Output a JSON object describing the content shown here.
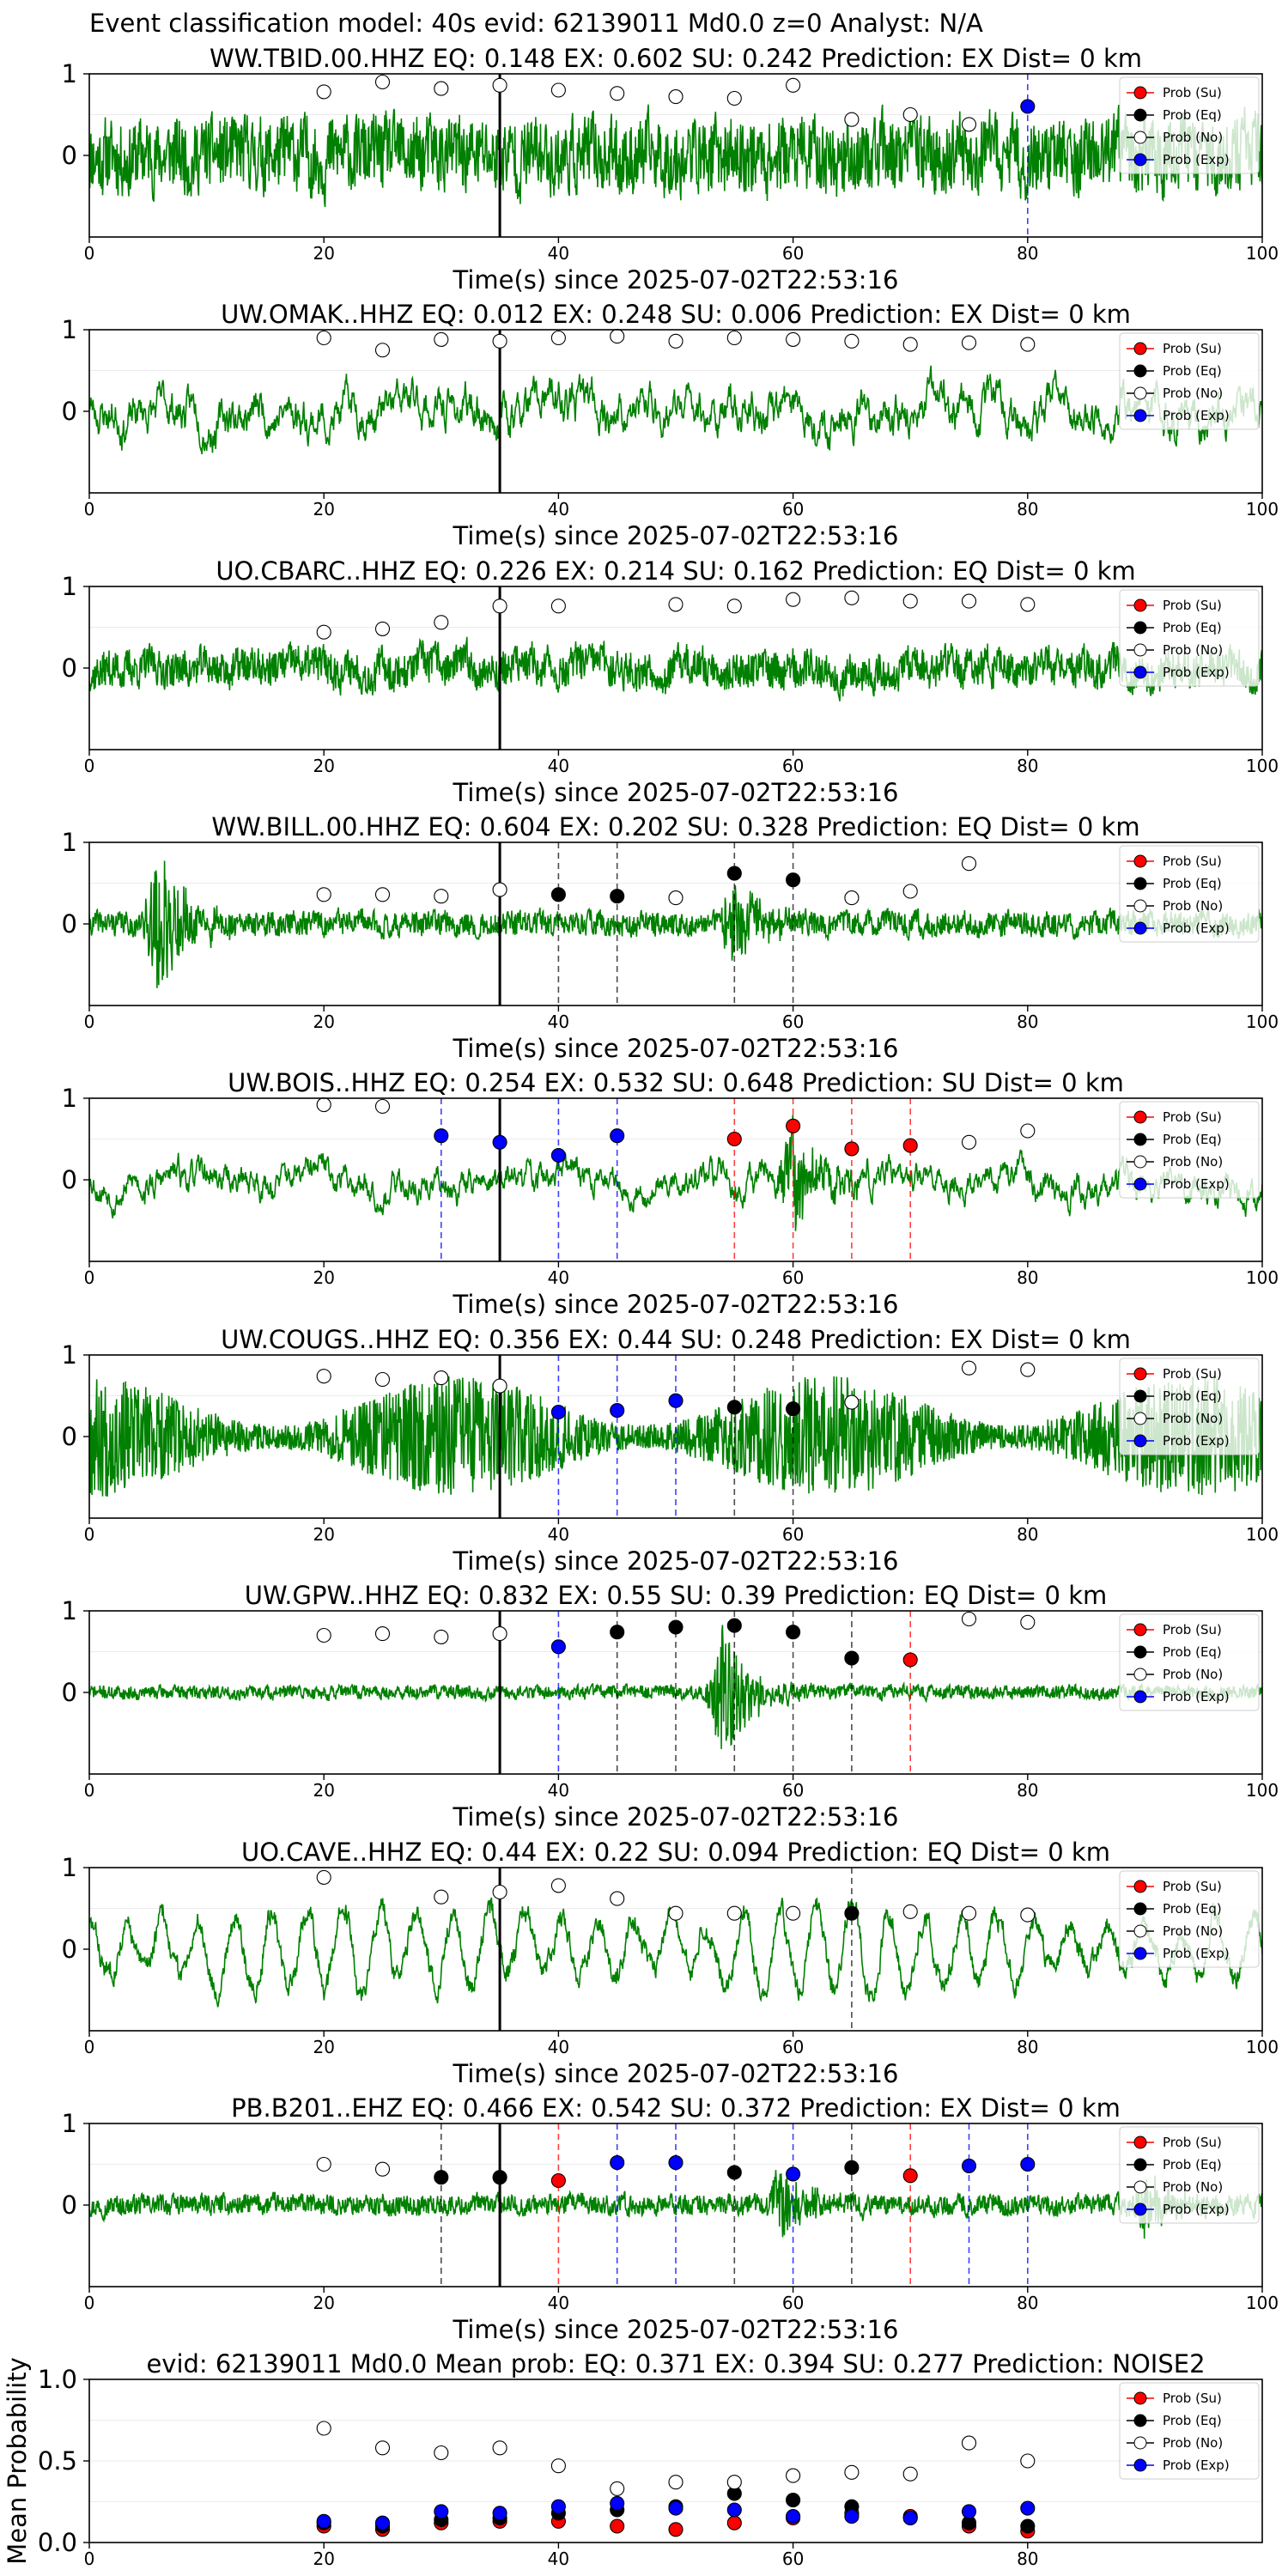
{
  "figure": {
    "title": "Event classification model: 40s evid: 62139011 Md0.0 z=0 Analyst: N/A"
  },
  "colors": {
    "waveform": "#008000",
    "su": "#ff0000",
    "eq": "#000000",
    "no": "#ffffff",
    "exp": "#0000ff",
    "axis": "#000000",
    "pick_line": "#000000"
  },
  "legend_labels": [
    "Prob (Su)",
    "Prob (Eq)",
    "Prob (No)",
    "Prob (Exp)"
  ],
  "chart_data": [
    {
      "type": "scatter",
      "station": "WW.TBID.00.HHZ",
      "title": "WW.TBID.00.HHZ   EQ: 0.148  EX: 0.602  SU: 0.242   Prediction: EX    Dist= 0 km",
      "xlabel": "Time(s) since 2025-07-02T22:53:16",
      "xlim": [
        0,
        100
      ],
      "ylim": [
        -1,
        1
      ],
      "xticks": [
        0,
        20,
        40,
        60,
        80,
        100
      ],
      "yticks": [
        0,
        1
      ],
      "pick_time": 35,
      "waveform": {
        "style": "noisy",
        "amp": 0.55,
        "seed": 11
      },
      "windows": [
        20,
        25,
        30,
        35,
        40,
        45,
        50,
        55,
        60,
        65,
        70,
        75,
        80
      ],
      "series": [
        {
          "name": "Prob (Su)",
          "x": [],
          "y": []
        },
        {
          "name": "Prob (Eq)",
          "x": [],
          "y": []
        },
        {
          "name": "Prob (No)",
          "x": [
            20,
            25,
            30,
            35,
            40,
            45,
            50,
            55,
            60,
            65,
            70,
            75
          ],
          "y": [
            0.78,
            0.9,
            0.82,
            0.86,
            0.8,
            0.76,
            0.72,
            0.7,
            0.86,
            0.44,
            0.5,
            0.38
          ]
        },
        {
          "name": "Prob (Exp)",
          "x": [
            80
          ],
          "y": [
            0.6
          ]
        }
      ],
      "dashed_lines": [
        {
          "x": 80,
          "class": "exp"
        }
      ],
      "legend": "top-right"
    },
    {
      "type": "scatter",
      "station": "UW.OMAK..HHZ",
      "title": "UW.OMAK..HHZ   EQ: 0.012  EX: 0.248  SU: 0.006   Prediction: EX    Dist= 0 km",
      "xlabel": "Time(s) since 2025-07-02T22:53:16",
      "xlim": [
        0,
        100
      ],
      "ylim": [
        -1,
        1
      ],
      "xticks": [
        0,
        20,
        40,
        60,
        80,
        100
      ],
      "yticks": [
        0,
        1
      ],
      "pick_time": 35,
      "waveform": {
        "style": "wavy",
        "amp": 0.6,
        "seed": 23
      },
      "series": [
        {
          "name": "Prob (Su)",
          "x": [],
          "y": []
        },
        {
          "name": "Prob (Eq)",
          "x": [],
          "y": []
        },
        {
          "name": "Prob (No)",
          "x": [
            20,
            25,
            30,
            35,
            40,
            45,
            50,
            55,
            60,
            65,
            70,
            75,
            80
          ],
          "y": [
            0.9,
            0.75,
            0.88,
            0.86,
            0.9,
            0.92,
            0.86,
            0.9,
            0.88,
            0.86,
            0.82,
            0.84,
            0.82
          ]
        },
        {
          "name": "Prob (Exp)",
          "x": [],
          "y": []
        }
      ],
      "dashed_lines": [],
      "legend": "top-right"
    },
    {
      "type": "scatter",
      "station": "UO.CBARC..HHZ",
      "title": "UO.CBARC..HHZ   EQ: 0.226  EX: 0.214  SU: 0.162   Prediction: EQ    Dist= 0 km",
      "xlabel": "Time(s) since 2025-07-02T22:53:16",
      "xlim": [
        0,
        100
      ],
      "ylim": [
        -1,
        1
      ],
      "xticks": [
        0,
        20,
        40,
        60,
        80,
        100
      ],
      "yticks": [
        0,
        1
      ],
      "pick_time": 35,
      "waveform": {
        "style": "moderate",
        "amp": 0.35,
        "seed": 37
      },
      "series": [
        {
          "name": "Prob (Su)",
          "x": [],
          "y": []
        },
        {
          "name": "Prob (Eq)",
          "x": [],
          "y": []
        },
        {
          "name": "Prob (No)",
          "x": [
            20,
            25,
            30,
            35,
            40,
            50,
            55,
            60,
            65,
            70,
            75,
            80
          ],
          "y": [
            0.44,
            0.48,
            0.56,
            0.76,
            0.76,
            0.78,
            0.76,
            0.84,
            0.86,
            0.82,
            0.82,
            0.78
          ]
        },
        {
          "name": "Prob (Exp)",
          "x": [],
          "y": []
        }
      ],
      "dashed_lines": [],
      "legend": "top-right"
    },
    {
      "type": "scatter",
      "station": "WW.BILL.00.HHZ",
      "title": "WW.BILL.00.HHZ   EQ: 0.604  EX: 0.202  SU: 0.328   Prediction: EQ    Dist= 0 km",
      "xlabel": "Time(s) since 2025-07-02T22:53:16",
      "xlim": [
        0,
        100
      ],
      "ylim": [
        -1,
        1
      ],
      "xticks": [
        0,
        20,
        40,
        60,
        80,
        100
      ],
      "yticks": [
        0,
        1
      ],
      "pick_time": 35,
      "waveform": {
        "style": "quiet-burst",
        "amp": 0.18,
        "seed": 41,
        "bursts": [
          [
            6,
            0.9
          ],
          [
            55,
            0.5
          ]
        ]
      },
      "series": [
        {
          "name": "Prob (Su)",
          "x": [],
          "y": []
        },
        {
          "name": "Prob (Eq)",
          "x": [
            40,
            45,
            55,
            60
          ],
          "y": [
            0.36,
            0.34,
            0.62,
            0.54
          ]
        },
        {
          "name": "Prob (No)",
          "x": [
            20,
            25,
            30,
            35,
            50,
            65,
            70,
            75
          ],
          "y": [
            0.36,
            0.36,
            0.34,
            0.42,
            0.32,
            0.32,
            0.4,
            0.74
          ]
        },
        {
          "name": "Prob (Exp)",
          "x": [],
          "y": []
        }
      ],
      "dashed_lines": [
        {
          "x": 40,
          "class": "eq"
        },
        {
          "x": 45,
          "class": "eq"
        },
        {
          "x": 55,
          "class": "eq"
        },
        {
          "x": 60,
          "class": "eq"
        }
      ],
      "legend": "top-right"
    },
    {
      "type": "scatter",
      "station": "UW.BOIS..HHZ",
      "title": "UW.BOIS..HHZ   EQ: 0.254  EX: 0.532  SU: 0.648   Prediction: SU    Dist= 0 km",
      "xlabel": "Time(s) since 2025-07-02T22:53:16",
      "xlim": [
        0,
        100
      ],
      "ylim": [
        -1,
        1
      ],
      "xticks": [
        0,
        20,
        40,
        60,
        80,
        100
      ],
      "yticks": [
        0,
        1
      ],
      "pick_time": 35,
      "waveform": {
        "style": "wavy-burst",
        "amp": 0.45,
        "seed": 53,
        "bursts": [
          [
            60,
            0.7
          ]
        ]
      },
      "series": [
        {
          "name": "Prob (Su)",
          "x": [
            55,
            60,
            65,
            70
          ],
          "y": [
            0.5,
            0.66,
            0.38,
            0.42
          ]
        },
        {
          "name": "Prob (Eq)",
          "x": [],
          "y": []
        },
        {
          "name": "Prob (No)",
          "x": [
            20,
            25,
            75,
            80
          ],
          "y": [
            0.92,
            0.9,
            0.46,
            0.6
          ]
        },
        {
          "name": "Prob (Exp)",
          "x": [
            30,
            35,
            40,
            45
          ],
          "y": [
            0.54,
            0.46,
            0.3,
            0.54
          ]
        }
      ],
      "dashed_lines": [
        {
          "x": 30,
          "class": "exp"
        },
        {
          "x": 40,
          "class": "exp"
        },
        {
          "x": 45,
          "class": "exp"
        },
        {
          "x": 55,
          "class": "su"
        },
        {
          "x": 60,
          "class": "su"
        },
        {
          "x": 65,
          "class": "su"
        },
        {
          "x": 70,
          "class": "su"
        }
      ],
      "legend": "top-right"
    },
    {
      "type": "scatter",
      "station": "UW.COUGS..HHZ",
      "title": "UW.COUGS..HHZ   EQ: 0.356  EX: 0.44  SU: 0.248   Prediction: EX    Dist= 0 km",
      "xlabel": "Time(s) since 2025-07-02T22:53:16",
      "xlim": [
        0,
        100
      ],
      "ylim": [
        -1,
        1
      ],
      "xticks": [
        0,
        20,
        40,
        60,
        80,
        100
      ],
      "yticks": [
        0,
        1
      ],
      "pick_time": 35,
      "waveform": {
        "style": "dense",
        "amp": 0.75,
        "seed": 67
      },
      "series": [
        {
          "name": "Prob (Su)",
          "x": [],
          "y": []
        },
        {
          "name": "Prob (Eq)",
          "x": [
            55,
            60
          ],
          "y": [
            0.36,
            0.34
          ]
        },
        {
          "name": "Prob (No)",
          "x": [
            20,
            25,
            30,
            35,
            65,
            75,
            80
          ],
          "y": [
            0.74,
            0.7,
            0.72,
            0.62,
            0.42,
            0.84,
            0.82
          ]
        },
        {
          "name": "Prob (Exp)",
          "x": [
            40,
            45,
            50
          ],
          "y": [
            0.3,
            0.32,
            0.44
          ]
        }
      ],
      "dashed_lines": [
        {
          "x": 40,
          "class": "exp"
        },
        {
          "x": 45,
          "class": "exp"
        },
        {
          "x": 50,
          "class": "exp"
        },
        {
          "x": 55,
          "class": "eq"
        },
        {
          "x": 60,
          "class": "eq"
        }
      ],
      "legend": "top-right"
    },
    {
      "type": "scatter",
      "station": "UW.GPW..HHZ",
      "title": "UW.GPW..HHZ   EQ: 0.832  EX: 0.55  SU: 0.39   Prediction: EQ    Dist= 0 km",
      "xlabel": "Time(s) since 2025-07-02T22:53:16",
      "xlim": [
        0,
        100
      ],
      "ylim": [
        -1,
        1
      ],
      "xticks": [
        0,
        20,
        40,
        60,
        80,
        100
      ],
      "yticks": [
        0,
        1
      ],
      "pick_time": 35,
      "waveform": {
        "style": "quiet-burst",
        "amp": 0.1,
        "seed": 71,
        "bursts": [
          [
            54,
            0.9
          ]
        ]
      },
      "series": [
        {
          "name": "Prob (Su)",
          "x": [
            70
          ],
          "y": [
            0.4
          ]
        },
        {
          "name": "Prob (Eq)",
          "x": [
            45,
            50,
            55,
            60,
            65
          ],
          "y": [
            0.74,
            0.8,
            0.82,
            0.74,
            0.42
          ]
        },
        {
          "name": "Prob (No)",
          "x": [
            20,
            25,
            30,
            35,
            75,
            80
          ],
          "y": [
            0.7,
            0.72,
            0.68,
            0.72,
            0.9,
            0.86
          ]
        },
        {
          "name": "Prob (Exp)",
          "x": [
            40
          ],
          "y": [
            0.56
          ]
        }
      ],
      "dashed_lines": [
        {
          "x": 40,
          "class": "exp"
        },
        {
          "x": 45,
          "class": "eq"
        },
        {
          "x": 50,
          "class": "eq"
        },
        {
          "x": 55,
          "class": "eq"
        },
        {
          "x": 60,
          "class": "eq"
        },
        {
          "x": 65,
          "class": "eq"
        },
        {
          "x": 70,
          "class": "su"
        }
      ],
      "legend": "top-right"
    },
    {
      "type": "scatter",
      "station": "UO.CAVE..HHZ",
      "title": "UO.CAVE..HHZ   EQ: 0.44  EX: 0.22  SU: 0.094   Prediction: EQ    Dist= 0 km",
      "xlabel": "Time(s) since 2025-07-02T22:53:16",
      "xlim": [
        0,
        100
      ],
      "ylim": [
        -1,
        1
      ],
      "xticks": [
        0,
        20,
        40,
        60,
        80,
        100
      ],
      "yticks": [
        0,
        1
      ],
      "pick_time": 35,
      "waveform": {
        "style": "oscillation",
        "amp": 0.8,
        "seed": 83
      },
      "series": [
        {
          "name": "Prob (Su)",
          "x": [],
          "y": []
        },
        {
          "name": "Prob (Eq)",
          "x": [
            65
          ],
          "y": [
            0.44
          ]
        },
        {
          "name": "Prob (No)",
          "x": [
            20,
            30,
            35,
            40,
            45,
            50,
            55,
            60,
            70,
            75,
            80
          ],
          "y": [
            0.88,
            0.64,
            0.7,
            0.78,
            0.62,
            0.44,
            0.44,
            0.44,
            0.46,
            0.44,
            0.42
          ]
        },
        {
          "name": "Prob (Exp)",
          "x": [],
          "y": []
        }
      ],
      "dashed_lines": [
        {
          "x": 65,
          "class": "eq"
        }
      ],
      "legend": "top-right"
    },
    {
      "type": "scatter",
      "station": "PB.B201..EHZ",
      "title": "PB.B201..EHZ   EQ: 0.466  EX: 0.542  SU: 0.372   Prediction: EX    Dist= 0 km",
      "xlabel": "Time(s) since 2025-07-02T22:53:16",
      "xlim": [
        0,
        100
      ],
      "ylim": [
        -1,
        1
      ],
      "xticks": [
        0,
        20,
        40,
        60,
        80,
        100
      ],
      "yticks": [
        0,
        1
      ],
      "pick_time": 35,
      "waveform": {
        "style": "quiet-burst",
        "amp": 0.15,
        "seed": 97,
        "bursts": [
          [
            59,
            0.55
          ],
          [
            90,
            0.35
          ]
        ]
      },
      "series": [
        {
          "name": "Prob (Su)",
          "x": [
            40,
            70
          ],
          "y": [
            0.3,
            0.36
          ]
        },
        {
          "name": "Prob (Eq)",
          "x": [
            30,
            35,
            55,
            65
          ],
          "y": [
            0.34,
            0.34,
            0.4,
            0.46
          ]
        },
        {
          "name": "Prob (No)",
          "x": [
            20,
            25
          ],
          "y": [
            0.5,
            0.44
          ]
        },
        {
          "name": "Prob (Exp)",
          "x": [
            45,
            50,
            60,
            75,
            80
          ],
          "y": [
            0.52,
            0.52,
            0.38,
            0.48,
            0.5
          ]
        }
      ],
      "dashed_lines": [
        {
          "x": 30,
          "class": "eq"
        },
        {
          "x": 40,
          "class": "su"
        },
        {
          "x": 45,
          "class": "exp"
        },
        {
          "x": 50,
          "class": "exp"
        },
        {
          "x": 55,
          "class": "eq"
        },
        {
          "x": 60,
          "class": "exp"
        },
        {
          "x": 65,
          "class": "eq"
        },
        {
          "x": 70,
          "class": "su"
        },
        {
          "x": 75,
          "class": "exp"
        },
        {
          "x": 80,
          "class": "exp"
        }
      ],
      "legend": "top-right"
    },
    {
      "type": "scatter",
      "station": "mean",
      "title": "evid: 62139011  Md0.0   Mean prob:    EQ: 0.371  EX: 0.394  SU: 0.277   Prediction: NOISE2",
      "ylabel": "Mean Probability",
      "xlabel": "",
      "xlim": [
        0,
        100
      ],
      "ylim": [
        0,
        1
      ],
      "xticks": [
        0,
        20,
        40,
        60,
        80
      ],
      "yticks": [
        0.0,
        0.5,
        1.0
      ],
      "ytick_labels": [
        "0.0",
        "0.5",
        "1.0"
      ],
      "series": [
        {
          "name": "Prob (Su)",
          "x": [
            20,
            25,
            30,
            35,
            40,
            45,
            50,
            55,
            60,
            65,
            70,
            75,
            80
          ],
          "y": [
            0.1,
            0.08,
            0.12,
            0.13,
            0.13,
            0.1,
            0.08,
            0.12,
            0.15,
            0.18,
            0.16,
            0.1,
            0.07
          ]
        },
        {
          "name": "Prob (Eq)",
          "x": [
            20,
            25,
            30,
            35,
            40,
            45,
            50,
            55,
            60,
            65,
            70,
            75,
            80
          ],
          "y": [
            0.12,
            0.1,
            0.14,
            0.15,
            0.18,
            0.2,
            0.22,
            0.3,
            0.26,
            0.22,
            0.15,
            0.12,
            0.1
          ]
        },
        {
          "name": "Prob (No)",
          "x": [
            20,
            25,
            30,
            35,
            40,
            45,
            50,
            55,
            60,
            65,
            70,
            75,
            80
          ],
          "y": [
            0.7,
            0.58,
            0.55,
            0.58,
            0.47,
            0.33,
            0.37,
            0.37,
            0.41,
            0.43,
            0.42,
            0.61,
            0.5
          ]
        },
        {
          "name": "Prob (Exp)",
          "x": [
            20,
            25,
            30,
            35,
            40,
            45,
            50,
            55,
            60,
            65,
            70,
            75,
            80
          ],
          "y": [
            0.13,
            0.12,
            0.19,
            0.18,
            0.22,
            0.24,
            0.21,
            0.2,
            0.16,
            0.16,
            0.15,
            0.19,
            0.21
          ]
        }
      ],
      "legend": "top-right"
    }
  ]
}
